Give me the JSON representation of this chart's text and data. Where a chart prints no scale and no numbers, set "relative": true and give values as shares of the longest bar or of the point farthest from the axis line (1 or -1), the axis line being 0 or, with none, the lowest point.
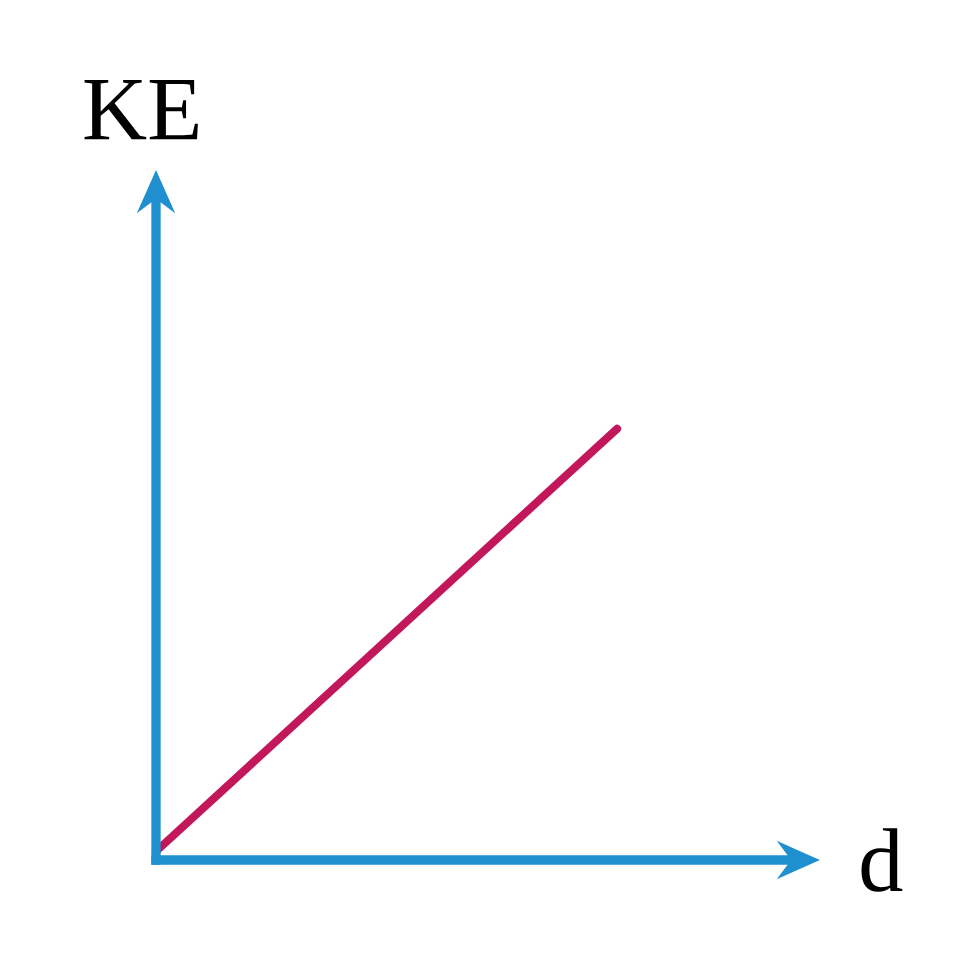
{
  "chart_data": {
    "type": "line",
    "xlabel": "d",
    "ylabel": "KE",
    "relative": true,
    "categories": [
      null,
      null
    ],
    "series": [
      {
        "color": "#c2185b",
        "values": [
          0.02,
          1
        ]
      }
    ]
  }
}
